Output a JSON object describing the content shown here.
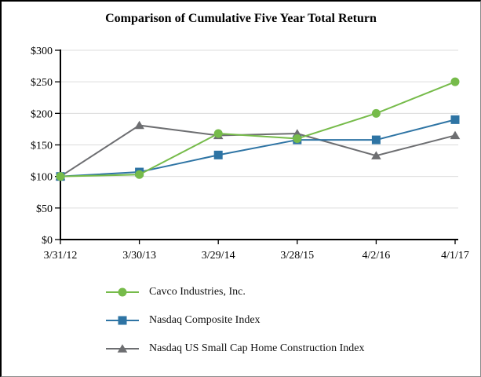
{
  "title": "Comparison of Cumulative Five Year Total Return",
  "chart_data": {
    "type": "line",
    "title": "Comparison of Cumulative Five Year Total Return",
    "xlabel": "",
    "ylabel": "",
    "x_labels": [
      "3/31/12",
      "3/30/13",
      "3/29/14",
      "3/28/15",
      "4/2/16",
      "4/1/17"
    ],
    "y_tick_labels": [
      "$0",
      "$50",
      "$100",
      "$150",
      "$200",
      "$250",
      "$300"
    ],
    "ylim": [
      0,
      300
    ],
    "grid": "horizontal-only",
    "legend_position": "below-left",
    "colors": {
      "gridline": "#DCDCDC",
      "axis": "#000000",
      "text": "#000000"
    },
    "series": [
      {
        "name": "Cavco Industries, Inc.",
        "marker": "circle",
        "color": "#76BB4A",
        "values": [
          100,
          103,
          168,
          160,
          200,
          250
        ]
      },
      {
        "name": "Nasdaq Composite Index",
        "marker": "square",
        "color": "#2E74A4",
        "values": [
          100,
          107,
          134,
          158,
          158,
          190
        ]
      },
      {
        "name": "Nasdaq US Small Cap Home Construction Index",
        "marker": "triangle",
        "color": "#6D6E71",
        "values": [
          100,
          181,
          165,
          168,
          133,
          165
        ]
      }
    ]
  }
}
